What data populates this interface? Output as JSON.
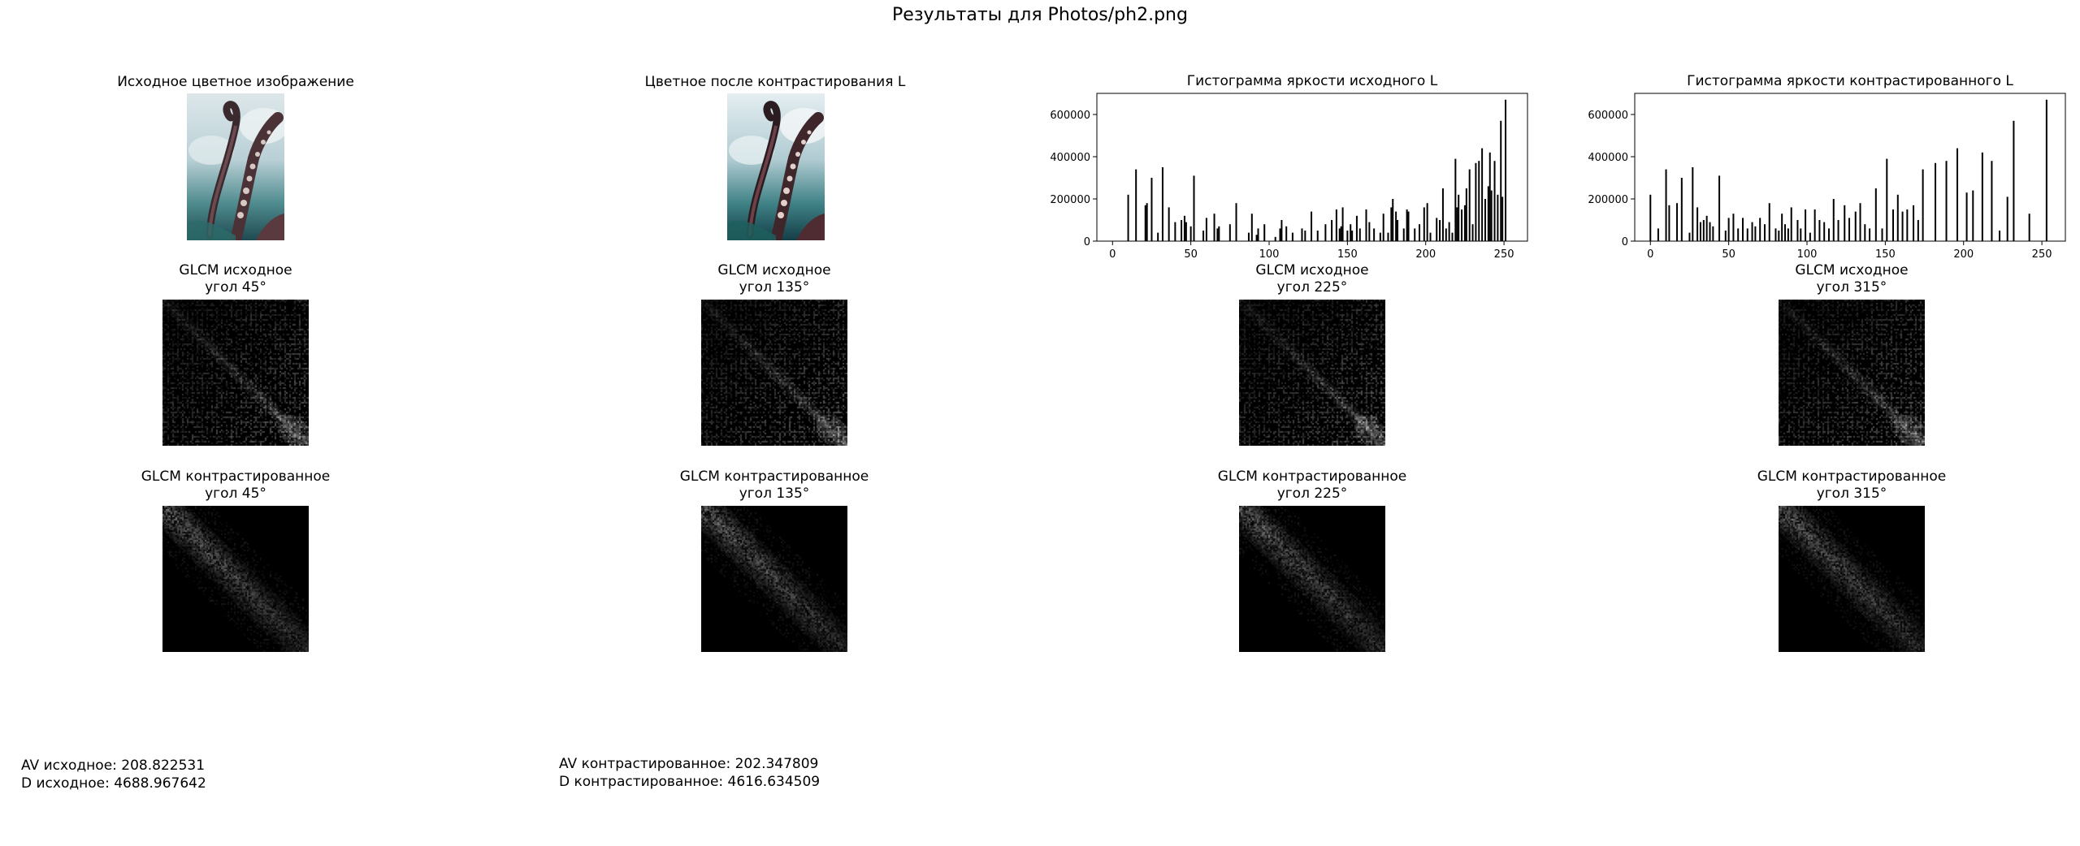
{
  "figure": {
    "suptitle": "Результаты для Photos/ph2.png"
  },
  "panels": {
    "orig_image_title": "Исходное цветное изображение",
    "contrast_image_title": "Цветное после контрастирования L"
  },
  "glcm_original": [
    {
      "line1": "GLCM исходное",
      "line2": "угол 45°"
    },
    {
      "line1": "GLCM исходное",
      "line2": "угол 135°"
    },
    {
      "line1": "GLCM исходное",
      "line2": "угол 225°"
    },
    {
      "line1": "GLCM исходное",
      "line2": "угол 315°"
    }
  ],
  "glcm_contrast": [
    {
      "line1": "GLCM контрастированное",
      "line2": "угол 45°"
    },
    {
      "line1": "GLCM контрастированное",
      "line2": "угол 135°"
    },
    {
      "line1": "GLCM контрастированное",
      "line2": "угол 225°"
    },
    {
      "line1": "GLCM контрастированное",
      "line2": "угол 315°"
    }
  ],
  "stats": {
    "av_orig": "AV исходное: 208.822531",
    "d_orig": "D исходное: 4688.967642",
    "av_contrast": "AV контрастированное: 202.347809",
    "d_contrast": "D контрастированное: 4616.634509"
  },
  "chart_data": [
    {
      "type": "bar",
      "title": "Гистограмма яркости исходного L",
      "xlim": [
        -10,
        265
      ],
      "ylim": [
        0,
        700000
      ],
      "xticks": [
        0,
        50,
        100,
        150,
        200,
        250
      ],
      "yticks": [
        0,
        200000,
        400000,
        600000
      ],
      "x": [
        10,
        15,
        21,
        22,
        25,
        29,
        32,
        36,
        40,
        44,
        46,
        47,
        50,
        52,
        58,
        60,
        65,
        67,
        68,
        75,
        79,
        87,
        89,
        92,
        93,
        97,
        104,
        107,
        108,
        111,
        115,
        121,
        123,
        127,
        131,
        136,
        140,
        143,
        145,
        146,
        147,
        150,
        152,
        153,
        156,
        158,
        162,
        164,
        167,
        171,
        173,
        176,
        178,
        179,
        181,
        182,
        186,
        188,
        189,
        193,
        196,
        199,
        201,
        203,
        207,
        209,
        211,
        213,
        215,
        217,
        219,
        220,
        221,
        223,
        225,
        226,
        228,
        230,
        232,
        234,
        236,
        238,
        240,
        241,
        242,
        244,
        246,
        248,
        249,
        251
      ],
      "values": [
        220000,
        340000,
        170000,
        180000,
        300000,
        40000,
        350000,
        160000,
        90000,
        100000,
        120000,
        90000,
        70000,
        310000,
        50000,
        110000,
        130000,
        60000,
        70000,
        80000,
        180000,
        40000,
        130000,
        30000,
        60000,
        80000,
        20000,
        60000,
        100000,
        70000,
        40000,
        60000,
        50000,
        140000,
        50000,
        80000,
        100000,
        150000,
        60000,
        70000,
        160000,
        50000,
        80000,
        50000,
        120000,
        60000,
        150000,
        90000,
        60000,
        40000,
        130000,
        40000,
        160000,
        200000,
        140000,
        100000,
        60000,
        150000,
        140000,
        60000,
        80000,
        160000,
        180000,
        40000,
        110000,
        100000,
        250000,
        60000,
        90000,
        40000,
        390000,
        160000,
        220000,
        150000,
        170000,
        250000,
        340000,
        80000,
        370000,
        380000,
        440000,
        200000,
        260000,
        420000,
        240000,
        380000,
        220000,
        570000,
        210000,
        670000
      ]
    },
    {
      "type": "bar",
      "title": "Гистограмма яркости контрастированного L",
      "xlim": [
        -10,
        265
      ],
      "ylim": [
        0,
        700000
      ],
      "xticks": [
        0,
        50,
        100,
        150,
        200,
        250
      ],
      "yticks": [
        0,
        200000,
        400000,
        600000
      ],
      "x": [
        0,
        5,
        10,
        12,
        17,
        20,
        25,
        27,
        30,
        32,
        34,
        36,
        38,
        40,
        44,
        48,
        50,
        53,
        56,
        59,
        62,
        65,
        67,
        70,
        73,
        76,
        80,
        82,
        84,
        86,
        88,
        90,
        94,
        96,
        99,
        102,
        105,
        108,
        111,
        114,
        117,
        120,
        124,
        127,
        131,
        134,
        137,
        140,
        144,
        148,
        151,
        155,
        158,
        161,
        164,
        168,
        171,
        174,
        182,
        189,
        196,
        202,
        206,
        212,
        218,
        223,
        228,
        232,
        242,
        253
      ],
      "values": [
        220000,
        60000,
        340000,
        170000,
        180000,
        300000,
        40000,
        350000,
        160000,
        90000,
        100000,
        120000,
        90000,
        70000,
        310000,
        50000,
        110000,
        130000,
        60000,
        110000,
        60000,
        90000,
        70000,
        110000,
        80000,
        180000,
        60000,
        50000,
        130000,
        80000,
        60000,
        160000,
        100000,
        60000,
        150000,
        40000,
        150000,
        100000,
        90000,
        60000,
        200000,
        100000,
        170000,
        110000,
        140000,
        180000,
        80000,
        60000,
        250000,
        60000,
        390000,
        150000,
        220000,
        140000,
        150000,
        170000,
        100000,
        340000,
        370000,
        380000,
        440000,
        230000,
        240000,
        420000,
        380000,
        50000,
        210000,
        570000,
        130000,
        670000
      ]
    }
  ]
}
